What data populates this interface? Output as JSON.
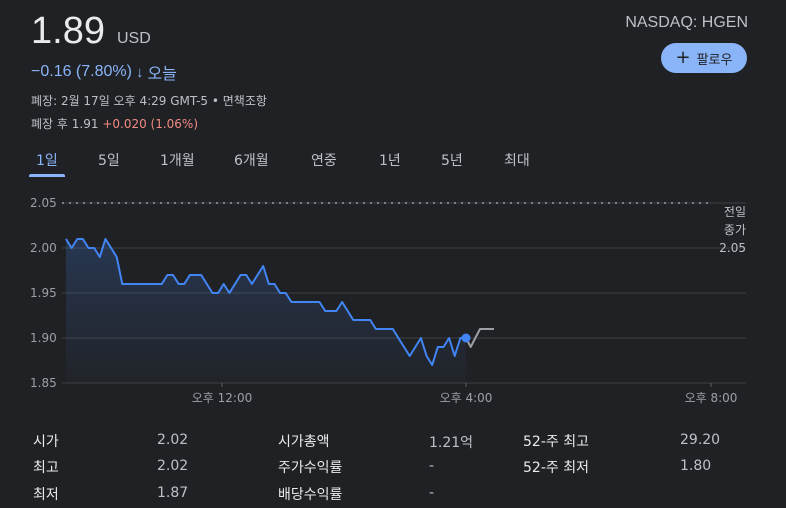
{
  "quote": {
    "price": "1.89",
    "currency": "USD",
    "exchange_ticker": "NASDAQ: HGEN",
    "change": "−0.16 (7.80%)",
    "change_arrow": "↓",
    "change_period": "오늘",
    "follow_label": "팔로우",
    "follow_icon": "plus-icon",
    "closing_info": "폐장: 2월 17일 오후 4:29 GMT-5 • 면책조항",
    "after_hours_label": "폐장 후",
    "after_hours_price": "1.91",
    "after_hours_change": "+0.020 (1.06%)"
  },
  "colors": {
    "background": "#202124",
    "accent": "#8ab4f8",
    "positive": "#f28b82",
    "line": "#4285f4",
    "after_hours_line": "#9aa0a6"
  },
  "tabs": [
    {
      "label": "1일",
      "active": true
    },
    {
      "label": "5일",
      "active": false
    },
    {
      "label": "1개월",
      "active": false
    },
    {
      "label": "6개월",
      "active": false
    },
    {
      "label": "연중",
      "active": false
    },
    {
      "label": "1년",
      "active": false
    },
    {
      "label": "5년",
      "active": false
    },
    {
      "label": "최대",
      "active": false
    }
  ],
  "chart_data": {
    "type": "line",
    "y_ticks": [
      "2.05",
      "2.00",
      "1.95",
      "1.90",
      "1.85"
    ],
    "x_ticks": [
      "오후 12:00",
      "오후 4:00",
      "오후 8:00"
    ],
    "ylim": [
      1.85,
      2.05
    ],
    "prev_close_label": [
      "전일",
      "종가",
      "2.05"
    ],
    "prev_close": 2.05,
    "series": [
      {
        "values": [
          2.01,
          2.0,
          2.01,
          2.01,
          2.0,
          2.0,
          1.99,
          2.01,
          2.0,
          1.99,
          1.96,
          1.96,
          1.96,
          1.96,
          1.96,
          1.96,
          1.96,
          1.96,
          1.97,
          1.97,
          1.96,
          1.96,
          1.97,
          1.97,
          1.97,
          1.96,
          1.95,
          1.95,
          1.96,
          1.95,
          1.96,
          1.97,
          1.97,
          1.96,
          1.97,
          1.98,
          1.96,
          1.96,
          1.95,
          1.95,
          1.94,
          1.94,
          1.94,
          1.94,
          1.94,
          1.94,
          1.93,
          1.93,
          1.93,
          1.94,
          1.93,
          1.92,
          1.92,
          1.92,
          1.92,
          1.91,
          1.91,
          1.91,
          1.91,
          1.9,
          1.89,
          1.88,
          1.89,
          1.9,
          1.88,
          1.87,
          1.89,
          1.89,
          1.9,
          1.88,
          1.9,
          1.9
        ]
      },
      {
        "values": [
          1.9,
          1.89,
          1.9,
          1.91,
          1.91,
          1.91,
          1.91
        ]
      }
    ]
  },
  "stats": [
    {
      "label": "시가",
      "value": "2.02"
    },
    {
      "label": "최고",
      "value": "2.02"
    },
    {
      "label": "최저",
      "value": "1.87"
    },
    {
      "label": "시가총액",
      "value": "1.21억"
    },
    {
      "label": "주가수익률",
      "value": "-"
    },
    {
      "label": "배당수익률",
      "value": "-"
    },
    {
      "label": "52-주 최고",
      "value": "29.20"
    },
    {
      "label": "52-주 최저",
      "value": "1.80"
    }
  ]
}
